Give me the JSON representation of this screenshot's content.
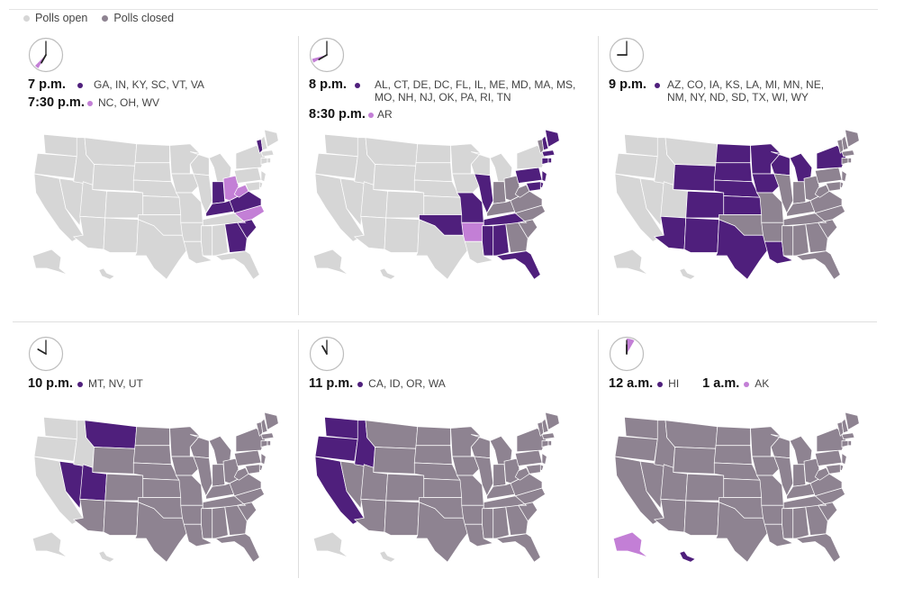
{
  "legend": {
    "open_label": "Polls open",
    "closed_label": "Polls closed"
  },
  "colors": {
    "open": "#d6d6d6",
    "closed": "#8e8391",
    "closing": "#4f1f7c",
    "closing_half": "#c37fd6",
    "state_border": "#ffffff"
  },
  "panels": [
    {
      "clock": {
        "hour": 7,
        "minute": 0,
        "hand_end_minute": 30
      },
      "rows": [
        {
          "time": "7 p.m.",
          "dot": "closing",
          "states": "GA, IN, KY, SC, VT, VA"
        },
        {
          "time": "7:30 p.m.",
          "dot": "closing_half",
          "states": "NC, OH, WV"
        }
      ],
      "map": {
        "base": "open",
        "closing": [
          "GA",
          "IN",
          "KY",
          "SC",
          "VT",
          "VA"
        ],
        "closing_half": [
          "NC",
          "OH",
          "WV"
        ],
        "closed": []
      }
    },
    {
      "clock": {
        "hour": 8,
        "minute": 0,
        "hand_end_minute": 30
      },
      "rows": [
        {
          "time": "8 p.m.",
          "dot": "closing",
          "states": "AL, CT, DE, DC, FL, IL, ME, MD, MA, MS, MO, NH, NJ, OK, PA, RI, TN"
        },
        {
          "time": "8:30 p.m.",
          "dot": "closing_half",
          "states": "AR"
        }
      ],
      "map": {
        "base": "open",
        "closing": [
          "AL",
          "CT",
          "DE",
          "FL",
          "IL",
          "ME",
          "MD",
          "MA",
          "MS",
          "MO",
          "NH",
          "NJ",
          "OK",
          "PA",
          "RI",
          "TN"
        ],
        "closing_half": [
          "AR"
        ],
        "closed": [
          "GA",
          "IN",
          "KY",
          "SC",
          "VT",
          "VA",
          "NC",
          "OH",
          "WV"
        ]
      }
    },
    {
      "clock": {
        "hour": 9,
        "minute": 0
      },
      "rows": [
        {
          "time": "9 p.m.",
          "dot": "closing",
          "states": "AZ, CO, IA, KS, LA, MI, MN, NE, NM, NY, ND, SD, TX, WI, WY"
        }
      ],
      "map": {
        "base": "open",
        "closing": [
          "AZ",
          "CO",
          "IA",
          "KS",
          "LA",
          "MI",
          "MN",
          "NE",
          "NM",
          "NY",
          "ND",
          "SD",
          "TX",
          "WI",
          "WY"
        ],
        "closing_half": [],
        "closed": [
          "GA",
          "IN",
          "KY",
          "SC",
          "VT",
          "VA",
          "NC",
          "OH",
          "WV",
          "AL",
          "CT",
          "DE",
          "FL",
          "IL",
          "ME",
          "MD",
          "MA",
          "MS",
          "MO",
          "NH",
          "NJ",
          "OK",
          "PA",
          "RI",
          "TN",
          "AR"
        ]
      }
    },
    {
      "clock": {
        "hour": 10,
        "minute": 0
      },
      "rows": [
        {
          "time": "10 p.m.",
          "dot": "closing",
          "states": "MT, NV, UT"
        }
      ],
      "map": {
        "base": "closed",
        "closing": [
          "MT",
          "NV",
          "UT"
        ],
        "closing_half": [],
        "open": [
          "CA",
          "OR",
          "WA",
          "ID",
          "AK",
          "HI"
        ]
      }
    },
    {
      "clock": {
        "hour": 11,
        "minute": 0
      },
      "rows": [
        {
          "time": "11 p.m.",
          "dot": "closing",
          "states": "CA, ID, OR, WA"
        }
      ],
      "map": {
        "base": "closed",
        "closing": [
          "CA",
          "ID",
          "OR",
          "WA"
        ],
        "closing_half": [],
        "open": [
          "AK",
          "HI"
        ]
      }
    },
    {
      "clock": {
        "hour": 12,
        "minute": 0,
        "wedge_to_hour": 1
      },
      "rows": [
        {
          "time": "12 a.m.",
          "dot": "closing",
          "states": "HI",
          "inline": true
        },
        {
          "time": "1 a.m.",
          "dot": "closing_half",
          "states": "AK",
          "inline": true
        }
      ],
      "map": {
        "base": "closed",
        "closing": [
          "HI"
        ],
        "closing_half": [
          "AK"
        ],
        "open": []
      }
    }
  ]
}
